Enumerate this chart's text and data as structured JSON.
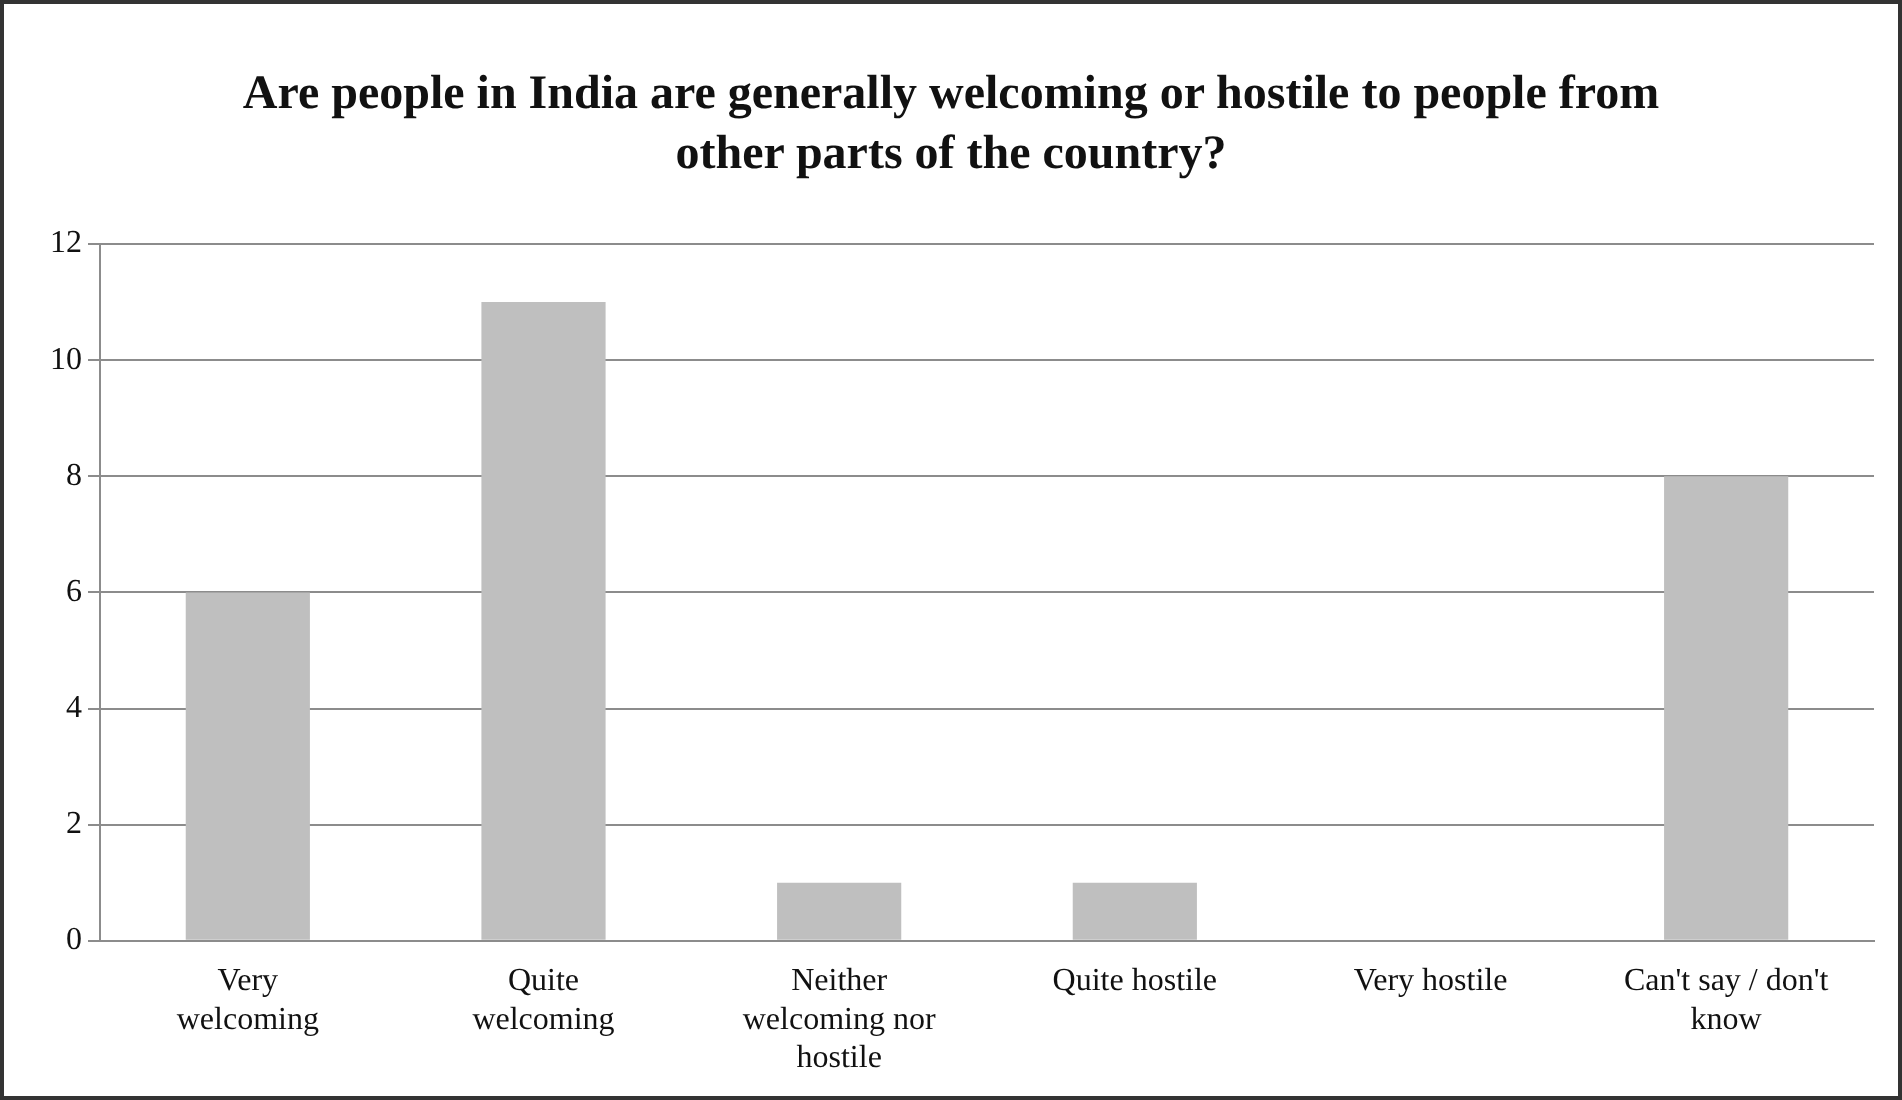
{
  "chart_data": {
    "type": "bar",
    "title": "Are people in India are generally welcoming or hostile to people from other parts of the country?",
    "categories": [
      "Very welcoming",
      "Quite welcoming",
      "Neither welcoming nor hostile",
      "Quite hostile",
      "Very hostile",
      "Can't say / don't know"
    ],
    "values": [
      6,
      11,
      1,
      1,
      0,
      8
    ],
    "color": "#bfbfbf",
    "ylim": [
      0,
      12
    ],
    "yticks": [
      0,
      2,
      4,
      6,
      8,
      10,
      12
    ],
    "grid": "y",
    "legend": false
  }
}
